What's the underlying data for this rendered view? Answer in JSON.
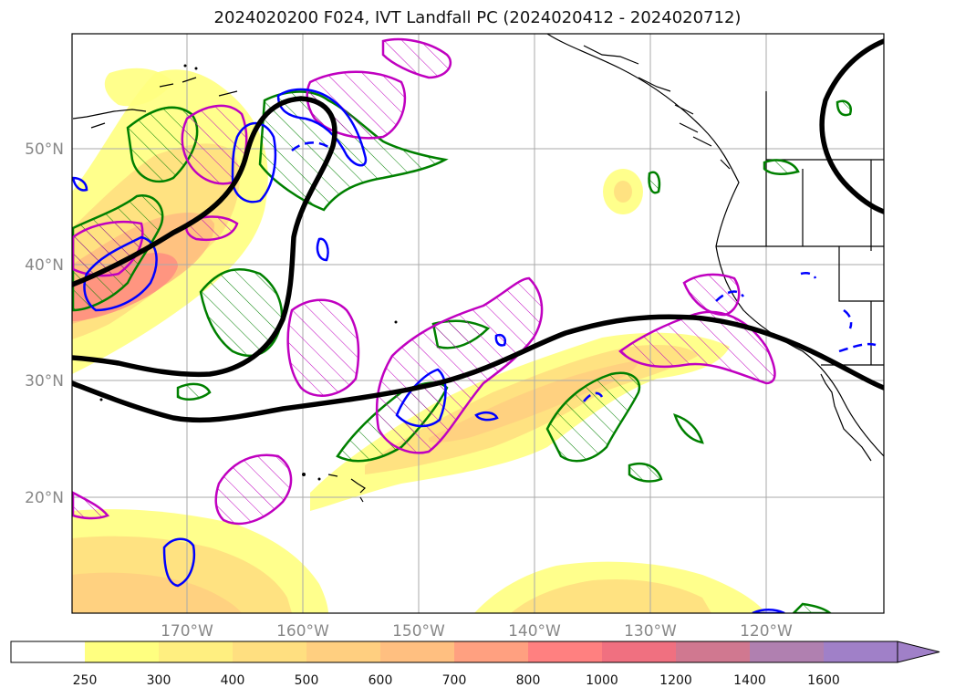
{
  "title": "2024020200 F024, IVT Landfall PC (2024020412 - 2024020712)",
  "map": {
    "lon_labels": [
      "170°W",
      "160°W",
      "150°W",
      "140°W",
      "130°W",
      "120°W"
    ],
    "lat_labels": [
      "50°N",
      "40°N",
      "30°N",
      "20°N"
    ]
  },
  "colorbar": {
    "ticks": [
      "250",
      "300",
      "400",
      "500",
      "600",
      "700",
      "800",
      "1000",
      "1200",
      "1400",
      "1600"
    ],
    "colors": [
      "#ffffff",
      "#ffff80",
      "#ffef80",
      "#ffdf80",
      "#ffcf80",
      "#ffbf80",
      "#ffa080",
      "#ff8080",
      "#f07080",
      "#d07890",
      "#b080b0",
      "#a080c8"
    ],
    "extend": "max"
  },
  "colors": {
    "ivt_pc_line": "#000000",
    "green_contour": "#008000",
    "blue_contour": "#0000ff",
    "magenta_contour": "#c000c0",
    "coastline": "#000000",
    "gridline": "#aaaaaa"
  }
}
